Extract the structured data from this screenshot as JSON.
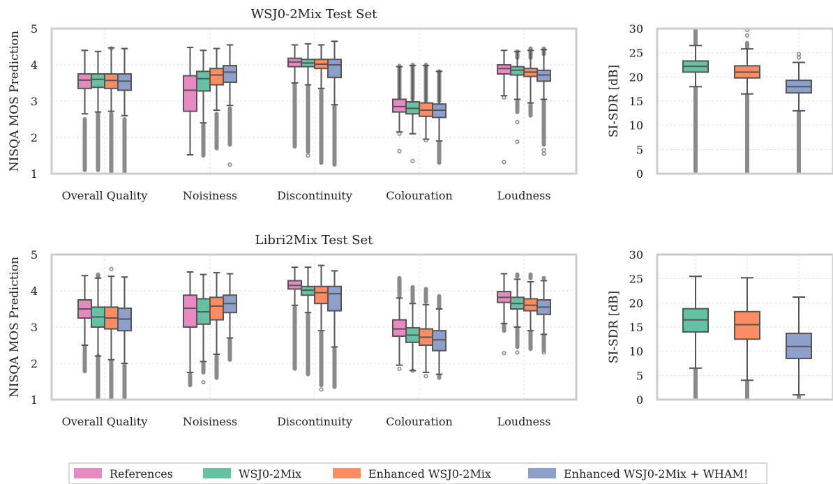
{
  "chart_data": [
    {
      "type": "box",
      "title": "WSJ0-2Mix Test Set",
      "ylabel": "NISQA MOS Prediction",
      "ylim": [
        1,
        5
      ],
      "yticks": [
        1,
        2,
        3,
        4,
        5
      ],
      "grid": true,
      "categories": [
        "Overall Quality",
        "Noisiness",
        "Discontinuity",
        "Colouration",
        "Loudness"
      ],
      "series_order": [
        "References",
        "WSJ0-2Mix",
        "Enhanced WSJ0-2Mix",
        "Enhanced WSJ0-2Mix + WHAM!"
      ],
      "boxes": [
        [
          [
            2.65,
            3.35,
            3.58,
            3.75,
            4.4
          ],
          [
            2.7,
            3.38,
            3.6,
            3.75,
            4.37
          ],
          [
            2.72,
            3.35,
            3.57,
            3.75,
            4.47
          ],
          [
            2.6,
            3.3,
            3.55,
            3.75,
            4.45
          ]
        ],
        [
          [
            1.52,
            2.72,
            3.3,
            3.7,
            4.48
          ],
          [
            2.4,
            3.28,
            3.62,
            3.82,
            4.4
          ],
          [
            2.75,
            3.45,
            3.72,
            3.9,
            4.45
          ],
          [
            2.88,
            3.52,
            3.8,
            3.98,
            4.55
          ]
        ],
        [
          [
            3.5,
            3.95,
            4.08,
            4.18,
            4.55
          ],
          [
            3.45,
            3.95,
            4.05,
            4.15,
            4.58
          ],
          [
            3.35,
            3.9,
            4.02,
            4.15,
            4.55
          ],
          [
            2.9,
            3.65,
            4.0,
            4.15,
            4.65
          ]
        ],
        [
          [
            2.15,
            2.7,
            2.85,
            3.05,
            3.95
          ],
          [
            2.1,
            2.65,
            2.8,
            2.98,
            3.98
          ],
          [
            1.95,
            2.58,
            2.75,
            2.95,
            3.98
          ],
          [
            1.9,
            2.55,
            2.75,
            2.92,
            3.82
          ]
        ],
        [
          [
            3.15,
            3.75,
            3.9,
            4.0,
            4.4
          ],
          [
            3.05,
            3.72,
            3.85,
            3.95,
            4.37
          ],
          [
            2.95,
            3.68,
            3.8,
            3.9,
            4.4
          ],
          [
            3.05,
            3.55,
            3.72,
            3.85,
            4.42
          ]
        ]
      ],
      "outliers": [
        [
          {
            "low": [
              1.1,
              2.5
            ],
            "pts": [
              1.35,
              2.05
            ]
          },
          {
            "low": [
              1.1,
              2.65
            ],
            "pts": []
          },
          {
            "low": [
              1.05,
              2.65
            ],
            "pts": [
              4.45
            ]
          },
          {
            "low": [
              1.0,
              2.5
            ],
            "pts": []
          }
        ],
        [
          {
            "low": null,
            "pts": []
          },
          {
            "low": [
              1.5,
              2.35
            ],
            "pts": []
          },
          {
            "low": [
              1.7,
              2.65
            ],
            "pts": []
          },
          {
            "low": [
              1.8,
              2.8
            ],
            "pts": [
              1.25
            ]
          }
        ],
        [
          {
            "low": [
              1.75,
              3.45
            ],
            "pts": []
          },
          {
            "low": [
              1.6,
              3.4
            ],
            "pts": [
              1.5
            ]
          },
          {
            "low": [
              1.3,
              3.3
            ],
            "pts": []
          },
          {
            "low": [
              1.25,
              2.85
            ],
            "pts": []
          }
        ],
        [
          {
            "low": null,
            "pts": [
              1.62,
              2.1
            ],
            "high": [
              3.1,
              3.97
            ]
          },
          {
            "low": null,
            "pts": [
              1.35
            ],
            "high": [
              3.05,
              4.0
            ]
          },
          {
            "low": null,
            "pts": [
              1.92
            ],
            "high": [
              3.0,
              4.0
            ]
          },
          {
            "low": [
              1.3,
              1.85
            ],
            "pts": [],
            "high": [
              3.0,
              3.82
            ]
          }
        ],
        [
          {
            "low": null,
            "pts": [
              1.32,
              3.1
            ]
          },
          {
            "low": [
              2.7,
              3.0
            ],
            "pts": [
              1.88,
              2.42
            ],
            "high": [
              4.2,
              4.37
            ]
          },
          {
            "low": [
              2.6,
              2.9
            ],
            "pts": [],
            "high": [
              4.2,
              4.45
            ]
          },
          {
            "low": [
              1.8,
              3.0
            ],
            "pts": [
              1.55,
              1.65
            ],
            "high": [
              4.3,
              4.45
            ]
          }
        ]
      ]
    },
    {
      "type": "box",
      "title": "",
      "ylabel": "SI-SDR [dB]",
      "ylim": [
        0,
        30
      ],
      "yticks": [
        0,
        5,
        10,
        15,
        20,
        25,
        30
      ],
      "grid": true,
      "series": [
        "WSJ0-2Mix",
        "Enhanced WSJ0-2Mix",
        "Enhanced WSJ0-2Mix + WHAM!"
      ],
      "boxes": [
        [
          18.0,
          21.0,
          22.2,
          23.3,
          26.5
        ],
        [
          16.5,
          19.8,
          21.0,
          22.3,
          25.8
        ],
        [
          13.0,
          16.7,
          18.0,
          19.3,
          23.0
        ]
      ],
      "outliers": [
        {
          "low": [
            0.5,
            17.8
          ],
          "pts": [],
          "high": [
            26.8,
            30
          ]
        },
        {
          "low": [
            0.3,
            16.3
          ],
          "pts": [
            28.6,
            30
          ],
          "high": [
            26.0,
            27.0
          ]
        },
        {
          "low": [
            0.2,
            12.8
          ],
          "pts": [
            24.0,
            24.7
          ],
          "high": null
        }
      ]
    },
    {
      "type": "box",
      "title": "Libri2Mix Test Set",
      "ylabel": "NISQA MOS Prediction",
      "ylim": [
        1,
        5
      ],
      "yticks": [
        1,
        2,
        3,
        4,
        5
      ],
      "grid": true,
      "categories": [
        "Overall Quality",
        "Noisiness",
        "Discontinuity",
        "Colouration",
        "Loudness"
      ],
      "series_order": [
        "References",
        "WSJ0-2Mix",
        "Enhanced WSJ0-2Mix",
        "Enhanced WSJ0-2Mix + WHAM!"
      ],
      "boxes": [
        [
          [
            2.5,
            3.25,
            3.5,
            3.75,
            4.42
          ],
          [
            2.2,
            3.0,
            3.28,
            3.55,
            4.35
          ],
          [
            2.1,
            2.95,
            3.25,
            3.55,
            4.4
          ],
          [
            2.0,
            2.9,
            3.22,
            3.52,
            4.38
          ]
        ],
        [
          [
            1.75,
            3.0,
            3.52,
            3.88,
            4.52
          ],
          [
            2.05,
            3.08,
            3.42,
            3.78,
            4.45
          ],
          [
            2.25,
            3.2,
            3.58,
            3.82,
            4.5
          ],
          [
            2.7,
            3.4,
            3.65,
            3.88,
            4.47
          ]
        ],
        [
          [
            3.6,
            4.05,
            4.15,
            4.28,
            4.65
          ],
          [
            3.4,
            3.88,
            4.02,
            4.12,
            4.65
          ],
          [
            2.9,
            3.65,
            3.95,
            4.12,
            4.7
          ],
          [
            2.45,
            3.45,
            3.92,
            4.12,
            4.55
          ]
        ],
        [
          [
            1.95,
            2.75,
            2.95,
            3.2,
            3.8
          ],
          [
            1.8,
            2.58,
            2.78,
            2.98,
            3.65
          ],
          [
            1.75,
            2.5,
            2.72,
            2.95,
            3.62
          ],
          [
            1.7,
            2.35,
            2.65,
            2.9,
            3.5
          ]
        ],
        [
          [
            3.1,
            3.68,
            3.82,
            3.98,
            4.47
          ],
          [
            3.0,
            3.5,
            3.65,
            3.82,
            4.32
          ],
          [
            2.9,
            3.45,
            3.6,
            3.78,
            4.25
          ],
          [
            2.8,
            3.35,
            3.55,
            3.75,
            4.28
          ]
        ]
      ],
      "outliers": [
        [
          {
            "low": [
              1.78,
              2.45
            ],
            "pts": [],
            "high": null
          },
          {
            "low": [
              1.0,
              2.2
            ],
            "pts": [],
            "high": [
              4.38,
              4.45
            ]
          },
          {
            "low": [
              1.0,
              2.05
            ],
            "pts": [
              4.6
            ],
            "high": null
          },
          {
            "low": [
              1.0,
              1.95
            ],
            "pts": [],
            "high": null
          }
        ],
        [
          {
            "low": [
              1.4,
              1.7
            ],
            "pts": [],
            "high": null
          },
          {
            "low": [
              1.75,
              2.0
            ],
            "pts": [
              1.48
            ],
            "high": null
          },
          {
            "low": [
              1.6,
              2.2
            ],
            "pts": [],
            "high": null
          },
          {
            "low": [
              2.1,
              2.65
            ],
            "pts": [],
            "high": null
          }
        ],
        [
          {
            "low": [
              1.85,
              3.55
            ],
            "pts": [],
            "high": null
          },
          {
            "low": [
              1.7,
              3.35
            ],
            "pts": [],
            "high": null
          },
          {
            "low": [
              1.4,
              2.85
            ],
            "pts": [
              1.28
            ],
            "high": null
          },
          {
            "low": [
              1.35,
              2.4
            ],
            "pts": [],
            "high": null
          }
        ],
        [
          {
            "low": null,
            "pts": [
              1.85
            ],
            "high": [
              3.85,
              4.35
            ]
          },
          {
            "low": null,
            "pts": [
              1.8
            ],
            "high": [
              3.7,
              4.1
            ]
          },
          {
            "low": null,
            "pts": [
              1.65
            ],
            "high": [
              3.7,
              4.05
            ]
          },
          {
            "low": [
              1.6,
              1.65
            ],
            "pts": [],
            "high": [
              3.55,
              3.85
            ]
          }
        ],
        [
          {
            "low": [
              2.9,
              3.05
            ],
            "pts": [
              2.28
            ],
            "high": null
          },
          {
            "low": [
              2.45,
              2.95
            ],
            "pts": [
              2.3
            ],
            "high": [
              4.4,
              4.45
            ]
          },
          {
            "low": [
              2.4,
              2.85
            ],
            "pts": [],
            "high": [
              4.35,
              4.45
            ]
          },
          {
            "low": [
              2.35,
              2.75
            ],
            "pts": [
              2.3
            ],
            "high": [
              4.35,
              4.35
            ]
          }
        ]
      ]
    },
    {
      "type": "box",
      "title": "",
      "ylabel": "SI-SDR [dB]",
      "ylim": [
        0,
        30
      ],
      "yticks": [
        0,
        5,
        10,
        15,
        20,
        25,
        30
      ],
      "grid": true,
      "series": [
        "WSJ0-2Mix",
        "Enhanced WSJ0-2Mix",
        "Enhanced WSJ0-2Mix + WHAM!"
      ],
      "boxes": [
        [
          6.5,
          14.0,
          16.5,
          18.8,
          25.5
        ],
        [
          4.0,
          12.5,
          15.5,
          18.2,
          25.2
        ],
        [
          1.0,
          8.5,
          11.0,
          13.7,
          21.2
        ]
      ],
      "outliers": [
        {
          "low": [
            0.2,
            6.3
          ],
          "pts": [],
          "high": null
        },
        {
          "low": [
            0.1,
            3.8
          ],
          "pts": [],
          "high": null
        },
        {
          "low": [
            0.4,
            0.7
          ],
          "pts": [],
          "high": null
        }
      ]
    }
  ],
  "legend": {
    "placement": "bottom-center",
    "entries": [
      {
        "label": "References",
        "color": "#e78ac3"
      },
      {
        "label": "WSJ0-2Mix",
        "color": "#66c2a5"
      },
      {
        "label": "Enhanced WSJ0-2Mix",
        "color": "#fc8d62"
      },
      {
        "label": "Enhanced WSJ0-2Mix + WHAM!",
        "color": "#8da0cb"
      }
    ]
  },
  "colors": {
    "References": "#e78ac3",
    "WSJ0-2Mix": "#66c2a5",
    "Enhanced WSJ0-2Mix": "#fc8d62",
    "Enhanced WSJ0-2Mix + WHAM!": "#8da0cb",
    "line": "#555555",
    "flier": "#8a8a8a",
    "frame": "#cccccc",
    "grid": "#dddddd"
  }
}
